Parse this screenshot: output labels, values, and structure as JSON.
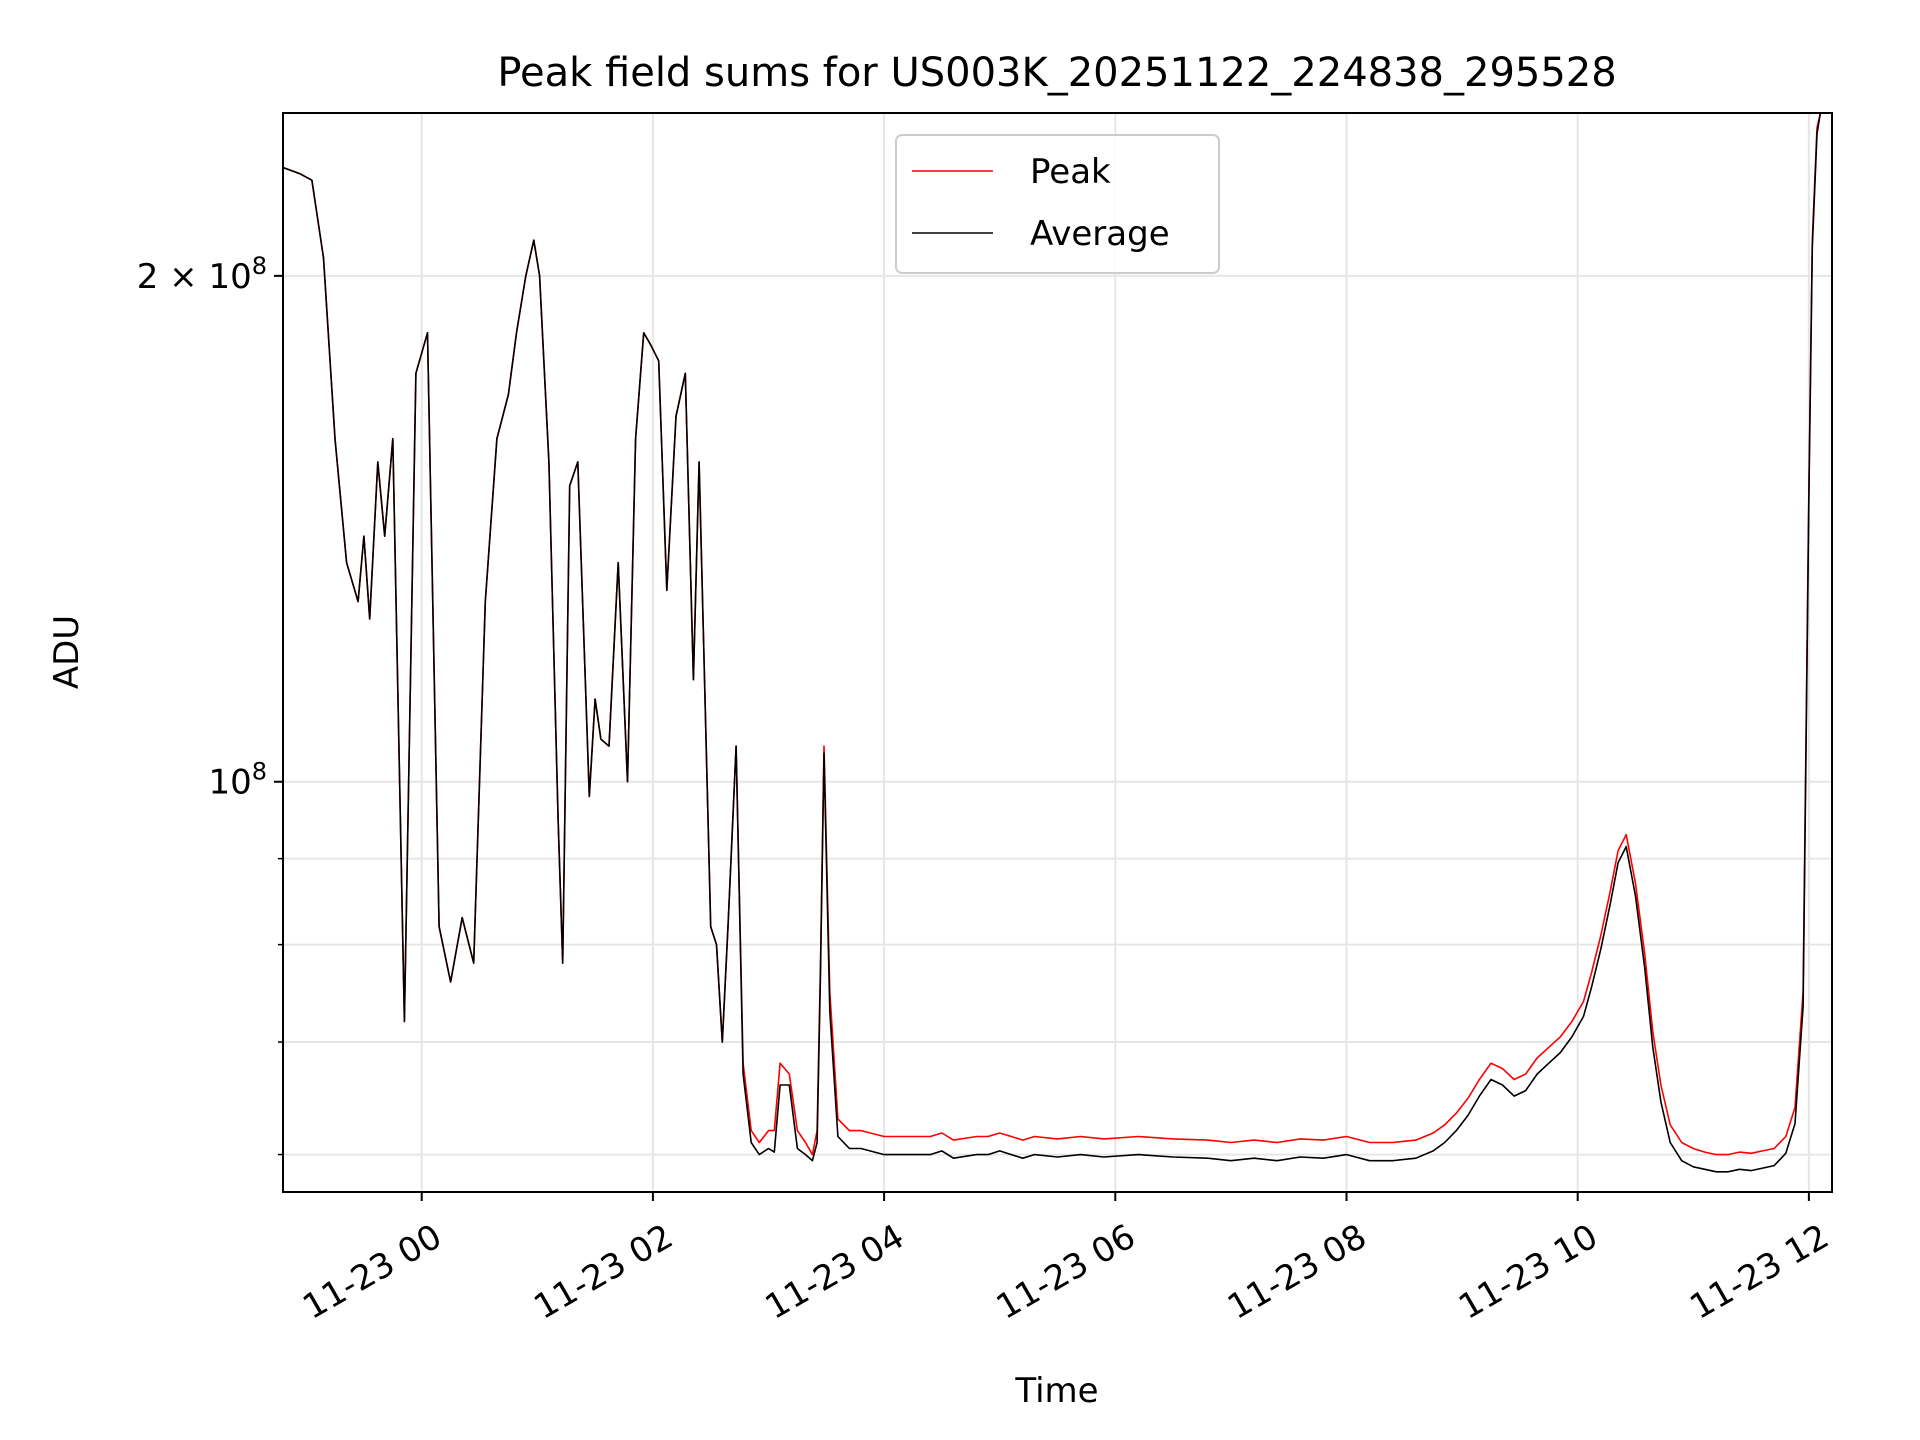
{
  "chart_data": {
    "type": "line",
    "title": "Peak field sums for US003K_20251122_224838_295528",
    "xlabel": "Time",
    "ylabel": "ADU",
    "yscale": "log",
    "x_units": "hours since 2025-11-22 00:00",
    "xlim": [
      22.8,
      36.2
    ],
    "ylim": [
      57000000,
      250000000
    ],
    "grid": true,
    "legend_position": "top-center",
    "x_ticks": [
      {
        "value": 24,
        "label": "11-23 00"
      },
      {
        "value": 26,
        "label": "11-23 02"
      },
      {
        "value": 28,
        "label": "11-23 04"
      },
      {
        "value": 30,
        "label": "11-23 06"
      },
      {
        "value": 32,
        "label": "11-23 08"
      },
      {
        "value": 34,
        "label": "11-23 10"
      },
      {
        "value": 36,
        "label": "11-23 12"
      }
    ],
    "y_ticks": [
      {
        "value": 100000000,
        "base": "10",
        "exp": "8",
        "coef": ""
      },
      {
        "value": 200000000,
        "base": "10",
        "exp": "8",
        "coef": "2 × "
      }
    ],
    "y_minor_ticks": [
      60000000,
      70000000,
      80000000,
      90000000
    ],
    "series": [
      {
        "name": "Peak",
        "color": "#ff0000",
        "points": [
          [
            22.8,
            232000000
          ],
          [
            22.95,
            230000000
          ],
          [
            23.05,
            228000000
          ],
          [
            23.15,
            205000000
          ],
          [
            23.25,
            160000000
          ],
          [
            23.35,
            135000000
          ],
          [
            23.45,
            128000000
          ],
          [
            23.5,
            140000000
          ],
          [
            23.55,
            125000000
          ],
          [
            23.62,
            155000000
          ],
          [
            23.68,
            140000000
          ],
          [
            23.75,
            160000000
          ],
          [
            23.85,
            72000000
          ],
          [
            23.95,
            175000000
          ],
          [
            24.05,
            185000000
          ],
          [
            24.15,
            82000000
          ],
          [
            24.25,
            76000000
          ],
          [
            24.35,
            83000000
          ],
          [
            24.45,
            78000000
          ],
          [
            24.55,
            128000000
          ],
          [
            24.65,
            160000000
          ],
          [
            24.75,
            170000000
          ],
          [
            24.82,
            185000000
          ],
          [
            24.9,
            200000000
          ],
          [
            24.97,
            210000000
          ],
          [
            25.02,
            200000000
          ],
          [
            25.1,
            155000000
          ],
          [
            25.18,
            95000000
          ],
          [
            25.22,
            78000000
          ],
          [
            25.28,
            150000000
          ],
          [
            25.35,
            155000000
          ],
          [
            25.45,
            98000000
          ],
          [
            25.5,
            112000000
          ],
          [
            25.55,
            106000000
          ],
          [
            25.62,
            105000000
          ],
          [
            25.7,
            135000000
          ],
          [
            25.78,
            100000000
          ],
          [
            25.85,
            160000000
          ],
          [
            25.92,
            185000000
          ],
          [
            25.98,
            182000000
          ],
          [
            26.05,
            178000000
          ],
          [
            26.12,
            130000000
          ],
          [
            26.2,
            165000000
          ],
          [
            26.28,
            175000000
          ],
          [
            26.35,
            115000000
          ],
          [
            26.4,
            155000000
          ],
          [
            26.5,
            82000000
          ],
          [
            26.55,
            80000000
          ],
          [
            26.6,
            70000000
          ],
          [
            26.65,
            82000000
          ],
          [
            26.72,
            105000000
          ],
          [
            26.78,
            68000000
          ],
          [
            26.85,
            62000000
          ],
          [
            26.92,
            61000000
          ],
          [
            27.0,
            62000000
          ],
          [
            27.05,
            62000000
          ],
          [
            27.1,
            68000000
          ],
          [
            27.18,
            67000000
          ],
          [
            27.25,
            62000000
          ],
          [
            27.32,
            61000000
          ],
          [
            27.38,
            60000000
          ],
          [
            27.42,
            62000000
          ],
          [
            27.45,
            78000000
          ],
          [
            27.48,
            105000000
          ],
          [
            27.53,
            75000000
          ],
          [
            27.6,
            63000000
          ],
          [
            27.7,
            62000000
          ],
          [
            27.8,
            62000000
          ],
          [
            28.0,
            61500000
          ],
          [
            28.2,
            61500000
          ],
          [
            28.4,
            61500000
          ],
          [
            28.5,
            61800000
          ],
          [
            28.6,
            61200000
          ],
          [
            28.8,
            61500000
          ],
          [
            28.9,
            61500000
          ],
          [
            29.0,
            61800000
          ],
          [
            29.1,
            61500000
          ],
          [
            29.2,
            61200000
          ],
          [
            29.3,
            61500000
          ],
          [
            29.5,
            61300000
          ],
          [
            29.7,
            61500000
          ],
          [
            29.9,
            61300000
          ],
          [
            30.2,
            61500000
          ],
          [
            30.5,
            61300000
          ],
          [
            30.8,
            61200000
          ],
          [
            31.0,
            61000000
          ],
          [
            31.2,
            61200000
          ],
          [
            31.4,
            61000000
          ],
          [
            31.6,
            61300000
          ],
          [
            31.8,
            61200000
          ],
          [
            32.0,
            61500000
          ],
          [
            32.2,
            61000000
          ],
          [
            32.4,
            61000000
          ],
          [
            32.6,
            61200000
          ],
          [
            32.75,
            61800000
          ],
          [
            32.85,
            62500000
          ],
          [
            32.95,
            63500000
          ],
          [
            33.05,
            64800000
          ],
          [
            33.15,
            66500000
          ],
          [
            33.25,
            68000000
          ],
          [
            33.35,
            67500000
          ],
          [
            33.45,
            66500000
          ],
          [
            33.55,
            67000000
          ],
          [
            33.65,
            68500000
          ],
          [
            33.75,
            69500000
          ],
          [
            33.85,
            70500000
          ],
          [
            33.95,
            72000000
          ],
          [
            34.05,
            74000000
          ],
          [
            34.12,
            77000000
          ],
          [
            34.2,
            81000000
          ],
          [
            34.28,
            86000000
          ],
          [
            34.35,
            91000000
          ],
          [
            34.42,
            93000000
          ],
          [
            34.5,
            87000000
          ],
          [
            34.58,
            79000000
          ],
          [
            34.65,
            71000000
          ],
          [
            34.72,
            66000000
          ],
          [
            34.8,
            62500000
          ],
          [
            34.9,
            61000000
          ],
          [
            35.0,
            60500000
          ],
          [
            35.1,
            60200000
          ],
          [
            35.2,
            60000000
          ],
          [
            35.3,
            60000000
          ],
          [
            35.4,
            60200000
          ],
          [
            35.5,
            60100000
          ],
          [
            35.6,
            60300000
          ],
          [
            35.7,
            60500000
          ],
          [
            35.8,
            61500000
          ],
          [
            35.88,
            64000000
          ],
          [
            35.95,
            75000000
          ],
          [
            36.0,
            150000000
          ],
          [
            36.03,
            210000000
          ],
          [
            36.07,
            245000000
          ],
          [
            36.1,
            250000000
          ]
        ]
      },
      {
        "name": "Average",
        "color": "#000000",
        "points": [
          [
            22.8,
            232000000
          ],
          [
            22.95,
            230000000
          ],
          [
            23.05,
            228000000
          ],
          [
            23.15,
            205000000
          ],
          [
            23.25,
            160000000
          ],
          [
            23.35,
            135000000
          ],
          [
            23.45,
            128000000
          ],
          [
            23.5,
            140000000
          ],
          [
            23.55,
            125000000
          ],
          [
            23.62,
            155000000
          ],
          [
            23.68,
            140000000
          ],
          [
            23.75,
            160000000
          ],
          [
            23.85,
            72000000
          ],
          [
            23.95,
            175000000
          ],
          [
            24.05,
            185000000
          ],
          [
            24.15,
            82000000
          ],
          [
            24.25,
            76000000
          ],
          [
            24.35,
            83000000
          ],
          [
            24.45,
            78000000
          ],
          [
            24.55,
            128000000
          ],
          [
            24.65,
            160000000
          ],
          [
            24.75,
            170000000
          ],
          [
            24.82,
            185000000
          ],
          [
            24.9,
            200000000
          ],
          [
            24.97,
            210000000
          ],
          [
            25.02,
            200000000
          ],
          [
            25.1,
            155000000
          ],
          [
            25.18,
            95000000
          ],
          [
            25.22,
            78000000
          ],
          [
            25.28,
            150000000
          ],
          [
            25.35,
            155000000
          ],
          [
            25.45,
            98000000
          ],
          [
            25.5,
            112000000
          ],
          [
            25.55,
            106000000
          ],
          [
            25.62,
            105000000
          ],
          [
            25.7,
            135000000
          ],
          [
            25.78,
            100000000
          ],
          [
            25.85,
            160000000
          ],
          [
            25.92,
            185000000
          ],
          [
            25.98,
            182000000
          ],
          [
            26.05,
            178000000
          ],
          [
            26.12,
            130000000
          ],
          [
            26.2,
            165000000
          ],
          [
            26.28,
            175000000
          ],
          [
            26.35,
            115000000
          ],
          [
            26.4,
            155000000
          ],
          [
            26.5,
            82000000
          ],
          [
            26.55,
            80000000
          ],
          [
            26.6,
            70000000
          ],
          [
            26.65,
            82000000
          ],
          [
            26.72,
            105000000
          ],
          [
            26.78,
            67000000
          ],
          [
            26.85,
            61000000
          ],
          [
            26.92,
            60000000
          ],
          [
            27.0,
            60500000
          ],
          [
            27.05,
            60200000
          ],
          [
            27.1,
            66000000
          ],
          [
            27.18,
            66000000
          ],
          [
            27.25,
            60500000
          ],
          [
            27.32,
            60000000
          ],
          [
            27.38,
            59500000
          ],
          [
            27.42,
            61000000
          ],
          [
            27.45,
            77000000
          ],
          [
            27.48,
            104000000
          ],
          [
            27.53,
            73000000
          ],
          [
            27.6,
            61500000
          ],
          [
            27.7,
            60500000
          ],
          [
            27.8,
            60500000
          ],
          [
            28.0,
            60000000
          ],
          [
            28.2,
            60000000
          ],
          [
            28.4,
            60000000
          ],
          [
            28.5,
            60300000
          ],
          [
            28.6,
            59700000
          ],
          [
            28.8,
            60000000
          ],
          [
            28.9,
            60000000
          ],
          [
            29.0,
            60300000
          ],
          [
            29.1,
            60000000
          ],
          [
            29.2,
            59700000
          ],
          [
            29.3,
            60000000
          ],
          [
            29.5,
            59800000
          ],
          [
            29.7,
            60000000
          ],
          [
            29.9,
            59800000
          ],
          [
            30.2,
            60000000
          ],
          [
            30.5,
            59800000
          ],
          [
            30.8,
            59700000
          ],
          [
            31.0,
            59500000
          ],
          [
            31.2,
            59700000
          ],
          [
            31.4,
            59500000
          ],
          [
            31.6,
            59800000
          ],
          [
            31.8,
            59700000
          ],
          [
            32.0,
            60000000
          ],
          [
            32.2,
            59500000
          ],
          [
            32.4,
            59500000
          ],
          [
            32.6,
            59700000
          ],
          [
            32.75,
            60300000
          ],
          [
            32.85,
            61000000
          ],
          [
            32.95,
            62000000
          ],
          [
            33.05,
            63300000
          ],
          [
            33.15,
            65000000
          ],
          [
            33.25,
            66500000
          ],
          [
            33.35,
            66000000
          ],
          [
            33.45,
            65000000
          ],
          [
            33.55,
            65500000
          ],
          [
            33.65,
            67000000
          ],
          [
            33.75,
            68000000
          ],
          [
            33.85,
            69000000
          ],
          [
            33.95,
            70500000
          ],
          [
            34.05,
            72500000
          ],
          [
            34.12,
            75500000
          ],
          [
            34.2,
            79500000
          ],
          [
            34.28,
            84500000
          ],
          [
            34.35,
            89500000
          ],
          [
            34.42,
            91500000
          ],
          [
            34.5,
            85500000
          ],
          [
            34.58,
            77500000
          ],
          [
            34.65,
            69500000
          ],
          [
            34.72,
            64500000
          ],
          [
            34.8,
            61000000
          ],
          [
            34.9,
            59500000
          ],
          [
            35.0,
            59000000
          ],
          [
            35.1,
            58800000
          ],
          [
            35.2,
            58600000
          ],
          [
            35.3,
            58600000
          ],
          [
            35.4,
            58800000
          ],
          [
            35.5,
            58700000
          ],
          [
            35.6,
            58900000
          ],
          [
            35.7,
            59100000
          ],
          [
            35.8,
            60100000
          ],
          [
            35.88,
            62600000
          ],
          [
            35.95,
            73500000
          ],
          [
            36.0,
            148000000
          ],
          [
            36.03,
            208000000
          ],
          [
            36.07,
            243000000
          ],
          [
            36.1,
            250000000
          ]
        ]
      }
    ]
  }
}
